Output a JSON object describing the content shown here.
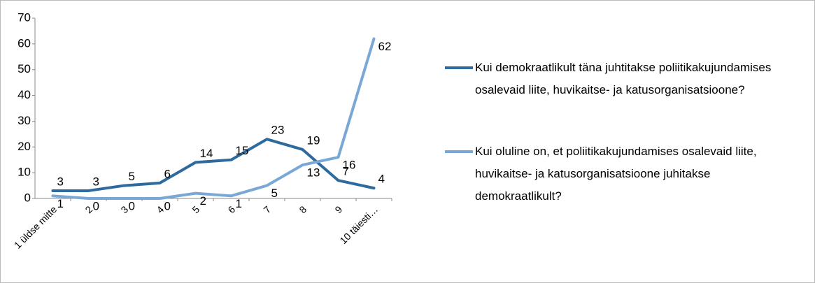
{
  "chart_data": {
    "type": "line",
    "categories": [
      "1 üldse mitte",
      "2",
      "3",
      "4",
      "5",
      "6",
      "7",
      "8",
      "9",
      "10 täiesti…"
    ],
    "series": [
      {
        "name": "Kui demokraatlikult täna juhtitakse poliitikakujundamises osalevaid liite, huvikaitse- ja katusorganisatsioone?",
        "color": "#2e6a9e",
        "values": [
          3,
          3,
          5,
          6,
          14,
          15,
          23,
          19,
          7,
          4
        ]
      },
      {
        "name": "Kui oluline on, et poliitikakujundamises osalevaid liite, huvikaitse- ja katusorganisatsioone juhitakse demokraatlikult?",
        "color": "#7aa8d6",
        "values": [
          1,
          0,
          0,
          0,
          2,
          1,
          5,
          13,
          16,
          62
        ]
      }
    ],
    "ylim": [
      0,
      70
    ],
    "yticks": [
      0,
      10,
      20,
      30,
      40,
      50,
      60,
      70
    ],
    "grid": false,
    "legend": "right"
  }
}
